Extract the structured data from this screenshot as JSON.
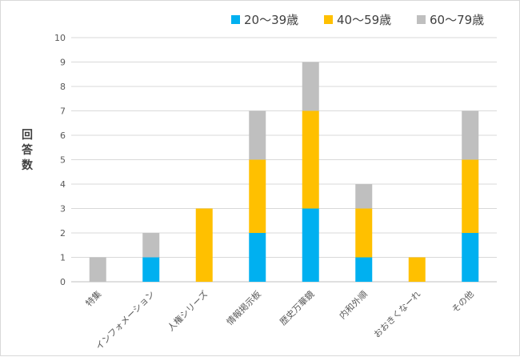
{
  "chart_data": {
    "type": "bar",
    "stacked": true,
    "categories": [
      "特集",
      "インフォメーション",
      "人権シリーズ",
      "情報掲示板",
      "歴史万華鏡",
      "内和外順",
      "おおきくなーれ",
      "その他"
    ],
    "series": [
      {
        "name": "20～39歳",
        "color": "#00b0f0",
        "values": [
          0,
          1,
          0,
          2,
          3,
          1,
          0,
          2
        ]
      },
      {
        "name": "40～59歳",
        "color": "#ffc000",
        "values": [
          0,
          0,
          3,
          3,
          4,
          2,
          1,
          3
        ]
      },
      {
        "name": "60～79歳",
        "color": "#bfbfbf",
        "values": [
          1,
          1,
          0,
          2,
          2,
          1,
          0,
          2
        ]
      }
    ],
    "xlabel": "",
    "ylabel": "回答数",
    "ylim": [
      0,
      10
    ],
    "yticks": [
      "0",
      "1",
      "2",
      "3",
      "4",
      "5",
      "6",
      "7",
      "8",
      "9",
      "10"
    ],
    "grid": true,
    "legend_position": "top-right"
  }
}
